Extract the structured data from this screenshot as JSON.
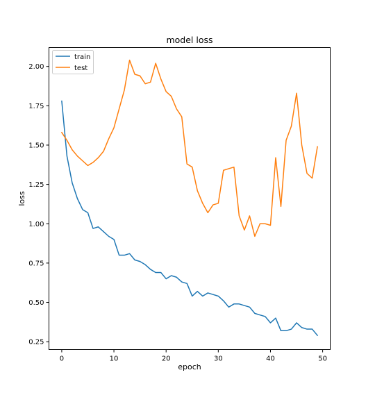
{
  "chart_data": {
    "type": "line",
    "title": "model loss",
    "xlabel": "epoch",
    "ylabel": "loss",
    "xlim": [
      -2.45,
      51.45
    ],
    "ylim": [
      0.2,
      2.12
    ],
    "grid": false,
    "legend_position": "upper-left",
    "x_ticks": [
      0,
      10,
      20,
      30,
      40,
      50
    ],
    "x_tick_labels": [
      "0",
      "10",
      "20",
      "30",
      "40",
      "50"
    ],
    "y_ticks": [
      0.25,
      0.5,
      0.75,
      1.0,
      1.25,
      1.5,
      1.75,
      2.0
    ],
    "y_tick_labels": [
      "0.25",
      "0.50",
      "0.75",
      "1.00",
      "1.25",
      "1.50",
      "1.75",
      "2.00"
    ],
    "x": [
      0,
      1,
      2,
      3,
      4,
      5,
      6,
      7,
      8,
      9,
      10,
      11,
      12,
      13,
      14,
      15,
      16,
      17,
      18,
      19,
      20,
      21,
      22,
      23,
      24,
      25,
      26,
      27,
      28,
      29,
      30,
      31,
      32,
      33,
      34,
      35,
      36,
      37,
      38,
      39,
      40,
      41,
      42,
      43,
      44,
      45,
      46,
      47,
      48,
      49
    ],
    "series": [
      {
        "name": "train",
        "color": "#1f77b4",
        "values": [
          1.78,
          1.43,
          1.26,
          1.16,
          1.09,
          1.07,
          0.97,
          0.98,
          0.95,
          0.92,
          0.9,
          0.8,
          0.8,
          0.81,
          0.77,
          0.76,
          0.74,
          0.71,
          0.69,
          0.69,
          0.65,
          0.67,
          0.66,
          0.63,
          0.62,
          0.54,
          0.57,
          0.54,
          0.56,
          0.55,
          0.54,
          0.51,
          0.47,
          0.49,
          0.49,
          0.48,
          0.47,
          0.43,
          0.42,
          0.41,
          0.37,
          0.4,
          0.32,
          0.32,
          0.33,
          0.37,
          0.34,
          0.33,
          0.33,
          0.29
        ]
      },
      {
        "name": "test",
        "color": "#ff7f0e",
        "values": [
          1.58,
          1.53,
          1.47,
          1.43,
          1.4,
          1.37,
          1.39,
          1.42,
          1.46,
          1.54,
          1.61,
          1.73,
          1.85,
          2.04,
          1.95,
          1.94,
          1.89,
          1.9,
          2.02,
          1.92,
          1.84,
          1.81,
          1.73,
          1.68,
          1.38,
          1.36,
          1.21,
          1.13,
          1.07,
          1.12,
          1.13,
          1.34,
          1.35,
          1.36,
          1.05,
          0.96,
          1.05,
          0.92,
          1.0,
          1.0,
          0.99,
          1.42,
          1.11,
          1.53,
          1.62,
          1.83,
          1.5,
          1.32,
          1.29,
          1.49
        ]
      }
    ]
  }
}
